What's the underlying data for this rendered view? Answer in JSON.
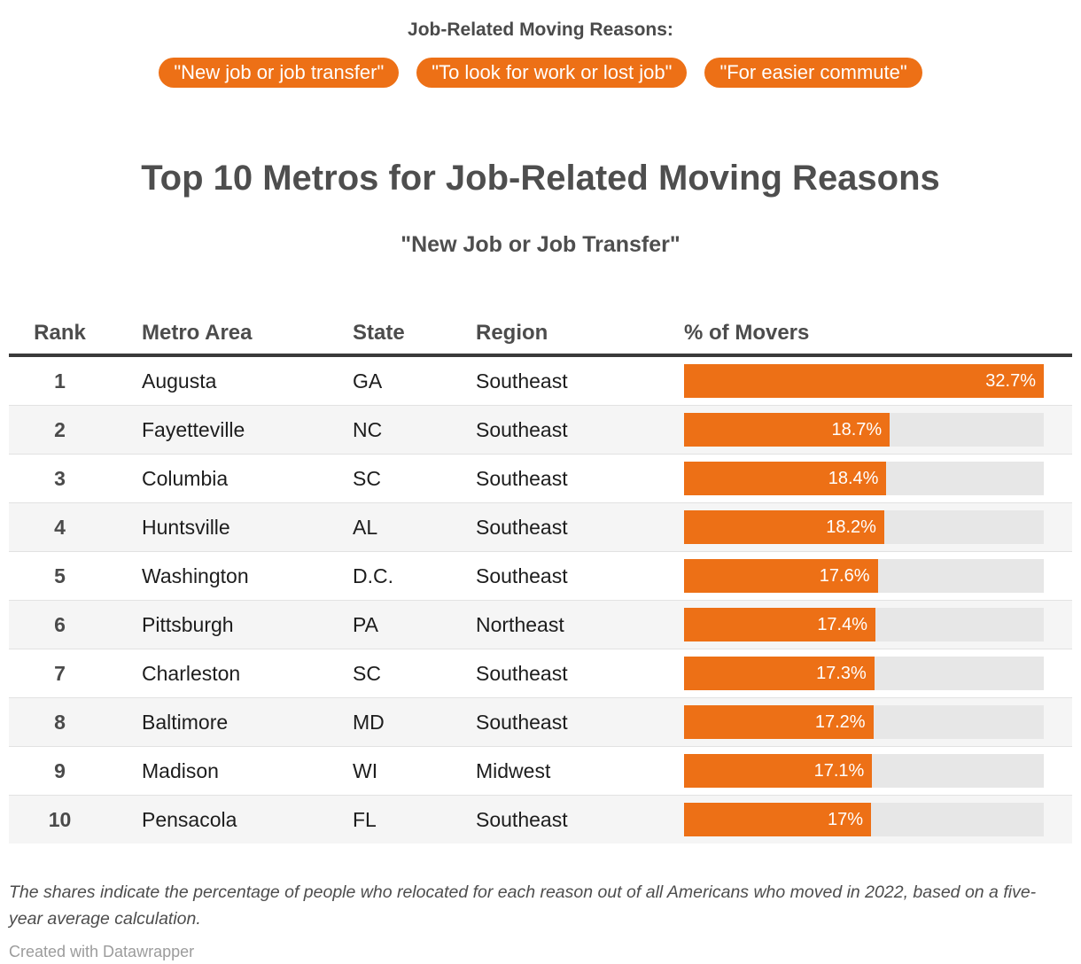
{
  "selector": {
    "heading": "Job-Related Moving Reasons:",
    "buttons": [
      {
        "label": "\"New job or job transfer\""
      },
      {
        "label": "\"To look for work or lost job\""
      },
      {
        "label": "\"For easier commute\""
      }
    ]
  },
  "title": "Top 10 Metros for Job-Related Moving Reasons",
  "subtitle": "\"New Job or Job Transfer\"",
  "table": {
    "columns": [
      "Rank",
      "Metro Area",
      "State",
      "Region",
      "% of Movers"
    ],
    "max_value": 32.7,
    "rows": [
      {
        "rank": "1",
        "metro": "Augusta",
        "state": "GA",
        "region": "Southeast",
        "value": 32.7,
        "label": "32.7%"
      },
      {
        "rank": "2",
        "metro": "Fayetteville",
        "state": "NC",
        "region": "Southeast",
        "value": 18.7,
        "label": "18.7%"
      },
      {
        "rank": "3",
        "metro": "Columbia",
        "state": "SC",
        "region": "Southeast",
        "value": 18.4,
        "label": "18.4%"
      },
      {
        "rank": "4",
        "metro": "Huntsville",
        "state": "AL",
        "region": "Southeast",
        "value": 18.2,
        "label": "18.2%"
      },
      {
        "rank": "5",
        "metro": "Washington",
        "state": "D.C.",
        "region": "Southeast",
        "value": 17.6,
        "label": "17.6%"
      },
      {
        "rank": "6",
        "metro": "Pittsburgh",
        "state": "PA",
        "region": "Northeast",
        "value": 17.4,
        "label": "17.4%"
      },
      {
        "rank": "7",
        "metro": "Charleston",
        "state": "SC",
        "region": "Southeast",
        "value": 17.3,
        "label": "17.3%"
      },
      {
        "rank": "8",
        "metro": "Baltimore",
        "state": "MD",
        "region": "Southeast",
        "value": 17.2,
        "label": "17.2%"
      },
      {
        "rank": "9",
        "metro": "Madison",
        "state": "WI",
        "region": "Midwest",
        "value": 17.1,
        "label": "17.1%"
      },
      {
        "rank": "10",
        "metro": "Pensacola",
        "state": "FL",
        "region": "Southeast",
        "value": 17.0,
        "label": "17%"
      }
    ]
  },
  "chart_data": {
    "type": "bar",
    "orientation": "horizontal",
    "title": "Top 10 Metros for Job-Related Moving Reasons",
    "subtitle": "\"New Job or Job Transfer\"",
    "categories": [
      "Augusta",
      "Fayetteville",
      "Columbia",
      "Huntsville",
      "Washington",
      "Pittsburgh",
      "Charleston",
      "Baltimore",
      "Madison",
      "Pensacola"
    ],
    "values": [
      32.7,
      18.7,
      18.4,
      18.2,
      17.6,
      17.4,
      17.3,
      17.2,
      17.1,
      17.0
    ],
    "value_labels": [
      "32.7%",
      "18.7%",
      "18.4%",
      "18.2%",
      "17.6%",
      "17.4%",
      "17.3%",
      "17.2%",
      "17.1%",
      "17%"
    ],
    "xlabel": "% of Movers",
    "xlim": [
      0,
      32.7
    ],
    "grid": false,
    "legend": false
  },
  "footer": {
    "note": "The shares indicate the percentage of people who relocated for each reason out of all Americans who moved in 2022, based on a five-year average calculation.",
    "credit": "Created with Datawrapper"
  },
  "colors": {
    "accent": "#ed7016",
    "bar_track": "#e7e7e7",
    "alt_row": "#f5f5f5",
    "header_rule": "#3a3a3a"
  }
}
